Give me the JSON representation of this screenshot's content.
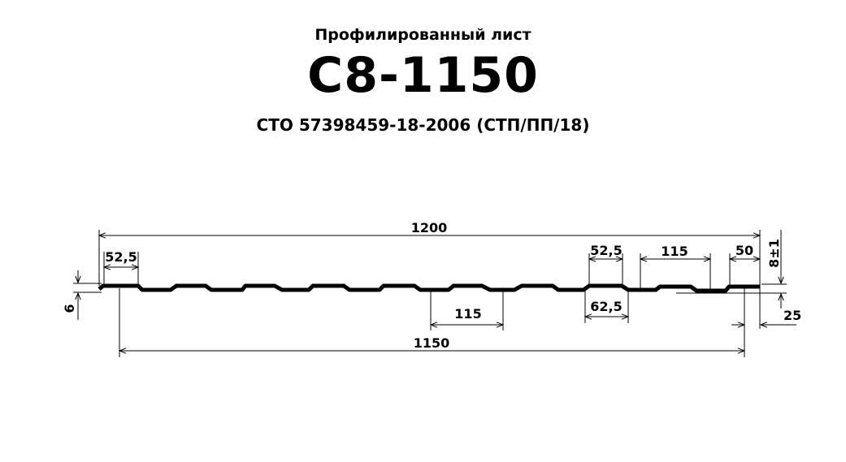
{
  "header": {
    "subtitle": "Профилированный лист",
    "title": "С8-1150",
    "standard": "СТО 57398459-18-2006 (СТП/ПП/18)"
  },
  "dimensions": {
    "total_width": "1200",
    "useful_width": "1150",
    "crest_left": "52,5",
    "crest_right": "52,5",
    "pitch_top": "115",
    "pitch_bottom": "115",
    "valley_bottom": "62,5",
    "edge": "50",
    "height": "8±1",
    "left_height": "6",
    "overlap": "25"
  }
}
